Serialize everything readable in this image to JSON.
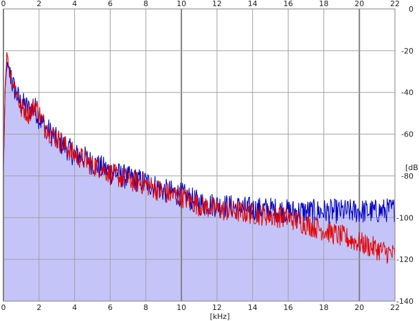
{
  "chart_data": {
    "type": "line",
    "xlabel": "[kHz]",
    "ylabel": "[dB]",
    "xlim": [
      0,
      22
    ],
    "ylim": [
      -140,
      0
    ],
    "x_ticks": [
      0,
      2,
      4,
      6,
      8,
      10,
      12,
      14,
      16,
      18,
      20,
      22
    ],
    "y_ticks": [
      0,
      -20,
      -40,
      -60,
      -80,
      -100,
      -120,
      -140
    ],
    "grid": true,
    "colors": {
      "background": "#ffffff",
      "grid": "#a0a0a0",
      "grid_major": "#808080",
      "area_fill": "#c4c4f8",
      "area_stroke": "#9a9ae0",
      "series_blue": "#0000c0",
      "series_red": "#e00000"
    },
    "series": [
      {
        "color": "#e00000",
        "x": [
          0.0,
          0.1,
          0.2,
          0.3,
          0.4,
          0.5,
          0.6,
          0.8,
          1.0,
          1.2,
          1.4,
          1.6,
          1.8,
          2.0,
          2.2,
          2.5,
          3.0,
          3.5,
          4.0,
          4.5,
          5.0,
          5.5,
          6.0,
          7.0,
          8.0,
          9.0,
          10.0,
          11.0,
          12.0,
          13.0,
          14.0,
          15.0,
          16.0,
          17.0,
          18.0,
          19.0,
          20.0,
          21.0,
          22.0
        ],
        "y": [
          -75,
          -35,
          -20,
          -28,
          -30,
          -34,
          -36,
          -42,
          -48,
          -48,
          -50,
          -48,
          -46,
          -50,
          -54,
          -58,
          -62,
          -66,
          -70,
          -72,
          -75,
          -76,
          -79,
          -82,
          -84,
          -88,
          -90,
          -94,
          -96,
          -97,
          -98,
          -99,
          -100,
          -103,
          -106,
          -109,
          -112,
          -115,
          -118
        ]
      },
      {
        "color": "#0000c0",
        "x": [
          0.0,
          0.1,
          0.2,
          0.3,
          0.4,
          0.5,
          0.6,
          0.8,
          1.0,
          1.2,
          1.4,
          1.6,
          1.8,
          2.0,
          2.2,
          2.5,
          3.0,
          3.5,
          4.0,
          4.5,
          5.0,
          5.5,
          6.0,
          7.0,
          8.0,
          9.0,
          10.0,
          11.0,
          12.0,
          13.0,
          14.0,
          15.0,
          16.0,
          17.0,
          18.0,
          19.0,
          20.0,
          21.0,
          22.0
        ],
        "y": [
          -78,
          -38,
          -26,
          -30,
          -32,
          -36,
          -38,
          -42,
          -46,
          -46,
          -48,
          -48,
          -48,
          -52,
          -55,
          -58,
          -63,
          -66,
          -70,
          -71,
          -74,
          -76,
          -78,
          -81,
          -83,
          -87,
          -89,
          -93,
          -94,
          -95,
          -96,
          -96,
          -97,
          -97,
          -97,
          -97,
          -97,
          -97,
          -96
        ]
      }
    ]
  }
}
